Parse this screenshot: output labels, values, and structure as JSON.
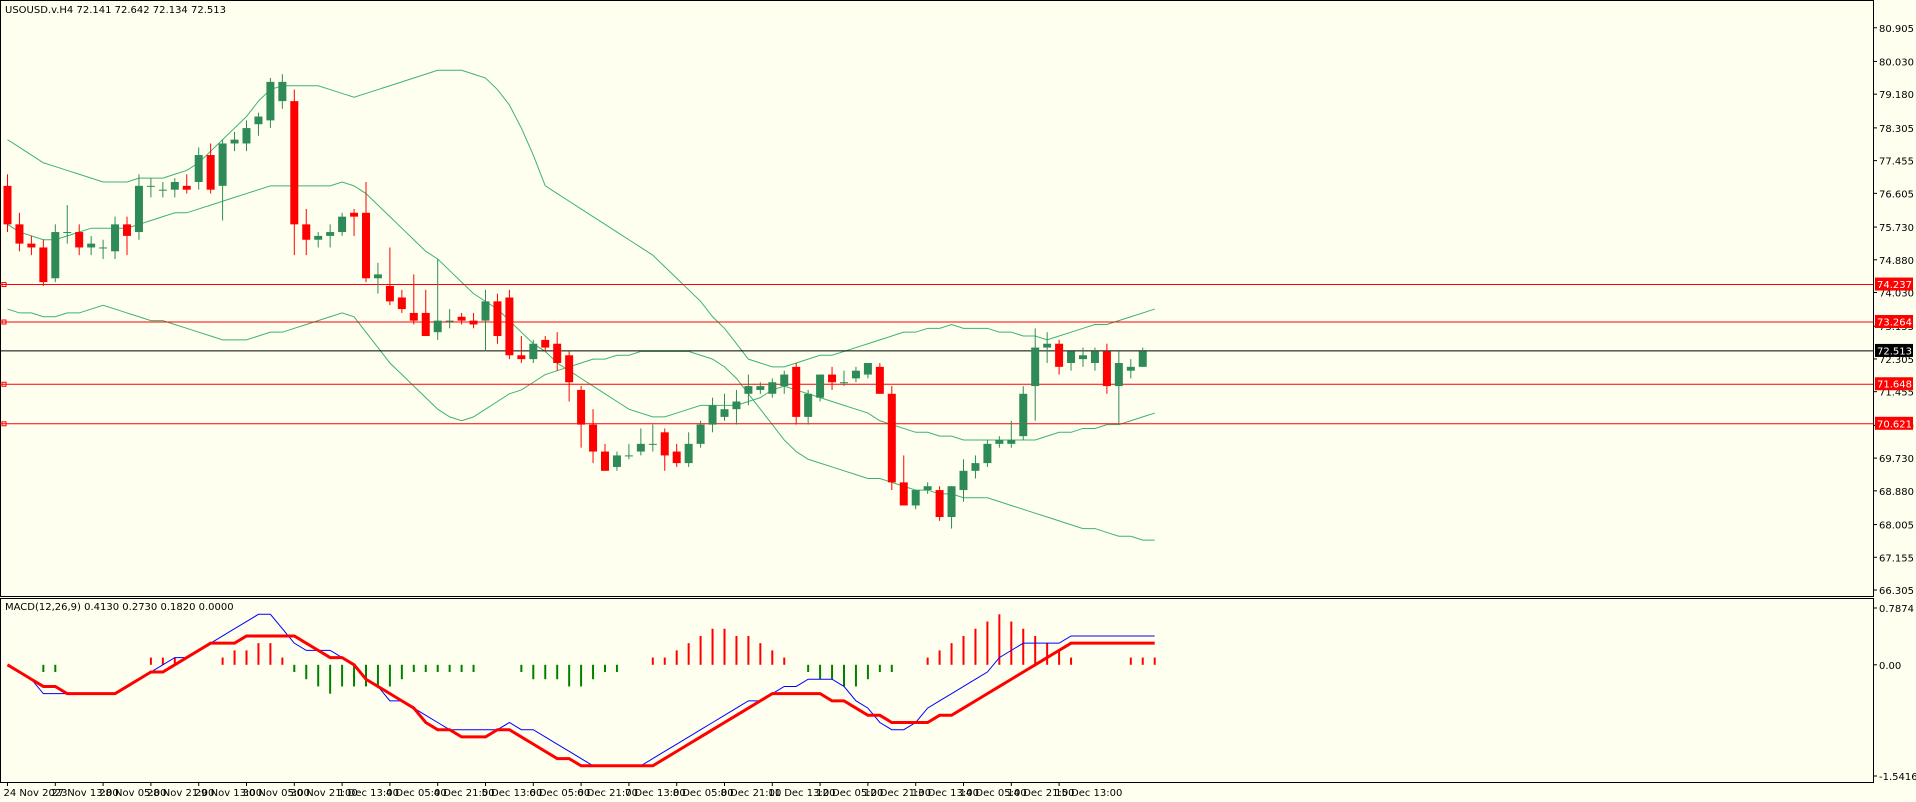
{
  "colors": {
    "background": "#fffff0",
    "bull": "#2e8b57",
    "bear": "#ff0000",
    "band": "#3cb371",
    "macd_line": "#0000ff",
    "signal_line": "#ff0000",
    "hist_up": "#ff0000",
    "hist_down": "#008000",
    "level_line": "#ff0000",
    "price_line": "#000000",
    "frame": "#000000"
  },
  "chart_data": [
    {
      "type": "candlestick",
      "title": "USOUSD.v.H4  72.141 72.642 72.134 72.513",
      "ylim": [
        66.305,
        81.47
      ],
      "y_ticks": [
        80.905,
        80.03,
        79.18,
        78.305,
        77.455,
        76.605,
        75.73,
        74.88,
        74.03,
        73.155,
        72.305,
        71.455,
        70.58,
        69.73,
        68.88,
        68.005,
        67.155,
        66.305
      ],
      "x_labels": [
        "24 Nov 2023",
        "27 Nov 13:00",
        "28 Nov 05:00",
        "28 Nov 21:00",
        "29 Nov 13:00",
        "30 Nov 05:00",
        "30 Nov 21:00",
        "1 Dec 13:00",
        "4 Dec 05:00",
        "4 Dec 21:00",
        "5 Dec 13:00",
        "6 Dec 05:00",
        "6 Dec 21:00",
        "7 Dec 13:00",
        "8 Dec 05:00",
        "8 Dec 21:00",
        "11 Dec 13:00",
        "12 Dec 05:00",
        "12 Dec 21:00",
        "13 Dec 13:00",
        "14 Dec 05:00",
        "14 Dec 21:00",
        "15 Dec 13:00"
      ],
      "x_label_index": [
        0,
        4,
        8,
        12,
        16,
        20,
        24,
        28,
        32,
        36,
        40,
        44,
        48,
        52,
        56,
        60,
        64,
        68,
        72,
        76,
        80,
        84,
        88
      ],
      "candles": [
        [
          76.8,
          77.1,
          75.6,
          75.8
        ],
        [
          75.8,
          76.1,
          75.1,
          75.3
        ],
        [
          75.3,
          75.5,
          75.0,
          75.2
        ],
        [
          75.2,
          75.4,
          74.2,
          74.3
        ],
        [
          74.4,
          75.8,
          74.3,
          75.6
        ],
        [
          75.6,
          76.3,
          75.3,
          75.6
        ],
        [
          75.6,
          75.8,
          75.0,
          75.2
        ],
        [
          75.2,
          75.5,
          75.0,
          75.3
        ],
        [
          75.2,
          75.4,
          74.9,
          75.2
        ],
        [
          75.1,
          76.0,
          74.9,
          75.8
        ],
        [
          75.8,
          76.0,
          75.0,
          75.5
        ],
        [
          75.6,
          77.1,
          75.4,
          76.8
        ],
        [
          76.8,
          77.0,
          76.5,
          76.8
        ],
        [
          76.7,
          76.9,
          76.5,
          76.7
        ],
        [
          76.7,
          77.0,
          76.5,
          76.9
        ],
        [
          76.8,
          77.1,
          76.6,
          76.7
        ],
        [
          76.9,
          77.8,
          76.7,
          77.6
        ],
        [
          77.6,
          77.9,
          76.6,
          76.7
        ],
        [
          76.8,
          78.0,
          75.9,
          77.9
        ],
        [
          77.9,
          78.2,
          77.7,
          78.0
        ],
        [
          77.9,
          78.5,
          77.7,
          78.3
        ],
        [
          78.4,
          78.7,
          78.1,
          78.6
        ],
        [
          78.5,
          79.6,
          78.3,
          79.5
        ],
        [
          79.0,
          79.7,
          78.8,
          79.5
        ],
        [
          79.0,
          79.3,
          75.0,
          75.8
        ],
        [
          75.8,
          76.2,
          75.0,
          75.4
        ],
        [
          75.4,
          75.6,
          75.2,
          75.5
        ],
        [
          75.5,
          75.8,
          75.2,
          75.6
        ],
        [
          75.6,
          76.1,
          75.5,
          76.0
        ],
        [
          76.1,
          76.2,
          75.5,
          76.0
        ],
        [
          76.1,
          76.9,
          74.3,
          74.4
        ],
        [
          74.4,
          74.8,
          74.0,
          74.5
        ],
        [
          74.2,
          75.2,
          73.7,
          73.8
        ],
        [
          73.9,
          74.1,
          73.5,
          73.6
        ],
        [
          73.5,
          74.5,
          73.2,
          73.3
        ],
        [
          73.5,
          74.1,
          72.9,
          72.9
        ],
        [
          73.0,
          74.9,
          72.8,
          73.3
        ],
        [
          73.3,
          73.6,
          73.1,
          73.3
        ],
        [
          73.4,
          73.5,
          73.2,
          73.3
        ],
        [
          73.3,
          73.5,
          73.1,
          73.2
        ],
        [
          73.3,
          74.1,
          72.5,
          73.8
        ],
        [
          73.8,
          74.0,
          72.7,
          72.9
        ],
        [
          73.9,
          74.1,
          72.3,
          72.4
        ],
        [
          72.4,
          72.9,
          72.2,
          72.3
        ],
        [
          72.3,
          72.8,
          72.2,
          72.7
        ],
        [
          72.8,
          72.9,
          72.5,
          72.6
        ],
        [
          72.7,
          73.0,
          72.0,
          72.2
        ],
        [
          72.4,
          72.5,
          71.2,
          71.7
        ],
        [
          71.5,
          71.6,
          70.0,
          70.6
        ],
        [
          70.6,
          71.0,
          69.6,
          69.9
        ],
        [
          69.9,
          70.1,
          69.4,
          69.4
        ],
        [
          69.5,
          69.9,
          69.4,
          69.8
        ],
        [
          69.8,
          70.1,
          69.7,
          69.8
        ],
        [
          69.9,
          70.5,
          69.8,
          70.1
        ],
        [
          70.1,
          70.6,
          69.9,
          70.1
        ],
        [
          70.4,
          70.5,
          69.4,
          69.8
        ],
        [
          69.9,
          70.1,
          69.5,
          69.6
        ],
        [
          69.6,
          70.4,
          69.5,
          70.1
        ],
        [
          70.1,
          70.7,
          70.0,
          70.6
        ],
        [
          70.6,
          71.3,
          70.4,
          71.1
        ],
        [
          70.8,
          71.4,
          70.7,
          71.0
        ],
        [
          71.0,
          71.5,
          70.6,
          71.2
        ],
        [
          71.4,
          71.9,
          71.1,
          71.6
        ],
        [
          71.5,
          71.7,
          71.4,
          71.6
        ],
        [
          71.4,
          71.8,
          71.3,
          71.7
        ],
        [
          71.6,
          72.0,
          71.4,
          71.9
        ],
        [
          72.1,
          72.2,
          70.6,
          70.8
        ],
        [
          70.8,
          71.5,
          70.6,
          71.4
        ],
        [
          71.3,
          71.9,
          71.2,
          71.9
        ],
        [
          71.9,
          72.1,
          71.5,
          71.7
        ],
        [
          71.7,
          72.0,
          71.6,
          71.7
        ],
        [
          71.8,
          72.1,
          71.7,
          72.0
        ],
        [
          71.9,
          72.2,
          71.8,
          72.2
        ],
        [
          72.1,
          72.2,
          71.4,
          71.4
        ],
        [
          71.4,
          71.6,
          68.9,
          69.1
        ],
        [
          69.1,
          69.8,
          68.6,
          68.5
        ],
        [
          68.5,
          68.9,
          68.4,
          68.9
        ],
        [
          68.9,
          69.1,
          68.8,
          69.0
        ],
        [
          68.9,
          69.0,
          68.1,
          68.2
        ],
        [
          68.2,
          69.0,
          67.9,
          69.0
        ],
        [
          68.9,
          69.7,
          68.6,
          69.4
        ],
        [
          69.4,
          69.8,
          69.2,
          69.6
        ],
        [
          69.6,
          70.2,
          69.5,
          70.1
        ],
        [
          70.1,
          70.3,
          70.0,
          70.2
        ],
        [
          70.1,
          70.7,
          70.0,
          70.2
        ],
        [
          70.3,
          71.6,
          70.2,
          71.4
        ],
        [
          71.6,
          73.1,
          70.7,
          72.6
        ],
        [
          72.6,
          73.0,
          72.2,
          72.7
        ],
        [
          72.7,
          72.8,
          71.9,
          72.1
        ],
        [
          72.2,
          72.5,
          72.0,
          72.5
        ],
        [
          72.3,
          72.6,
          72.1,
          72.4
        ],
        [
          72.2,
          72.6,
          72.0,
          72.5
        ],
        [
          72.5,
          72.7,
          71.4,
          71.6
        ],
        [
          71.6,
          72.5,
          70.6,
          72.2
        ],
        [
          72.0,
          72.3,
          71.8,
          72.1
        ],
        [
          72.1,
          72.6,
          72.1,
          72.5
        ]
      ],
      "bands": {
        "upper": [
          78.0,
          77.8,
          77.6,
          77.4,
          77.3,
          77.2,
          77.1,
          77.0,
          76.9,
          76.9,
          76.9,
          77.0,
          77.0,
          77.0,
          77.1,
          77.2,
          77.4,
          77.7,
          78.0,
          78.3,
          78.6,
          79.0,
          79.3,
          79.4,
          79.4,
          79.4,
          79.4,
          79.3,
          79.2,
          79.1,
          79.2,
          79.3,
          79.4,
          79.5,
          79.6,
          79.7,
          79.8,
          79.8,
          79.8,
          79.7,
          79.6,
          79.3,
          78.9,
          78.3,
          77.6,
          76.8,
          76.6,
          76.4,
          76.2,
          76.0,
          75.8,
          75.6,
          75.4,
          75.2,
          75.0,
          74.7,
          74.4,
          74.1,
          73.8,
          73.4,
          73.1,
          72.7,
          72.3,
          72.2,
          72.1,
          72.1,
          72.2,
          72.3,
          72.4,
          72.4,
          72.5,
          72.6,
          72.7,
          72.8,
          72.9,
          73.0,
          73.0,
          73.1,
          73.1,
          73.2,
          73.1,
          73.1,
          73.1,
          73.0,
          73.0,
          72.9,
          72.9,
          72.8,
          72.9,
          73.0,
          73.1,
          73.2,
          73.2,
          73.3,
          73.4,
          73.5,
          73.6
        ],
        "middle": [
          75.8,
          75.6,
          75.5,
          75.4,
          75.4,
          75.5,
          75.6,
          75.7,
          75.7,
          75.7,
          75.7,
          75.8,
          75.9,
          76.0,
          76.1,
          76.1,
          76.2,
          76.3,
          76.4,
          76.5,
          76.6,
          76.7,
          76.8,
          76.8,
          76.8,
          76.8,
          76.8,
          76.8,
          76.9,
          76.8,
          76.6,
          76.3,
          76.0,
          75.7,
          75.4,
          75.1,
          74.9,
          74.6,
          74.3,
          74.0,
          73.8,
          73.6,
          73.3,
          73.0,
          72.7,
          72.5,
          72.2,
          72.0,
          71.8,
          71.6,
          71.4,
          71.2,
          71.0,
          70.9,
          70.8,
          70.8,
          70.9,
          71.0,
          71.1,
          71.1,
          71.1,
          71.1,
          71.2,
          71.3,
          71.5,
          71.6,
          71.5,
          71.4,
          71.3,
          71.2,
          71.1,
          71.0,
          70.9,
          70.7,
          70.6,
          70.5,
          70.4,
          70.4,
          70.3,
          70.3,
          70.2,
          70.2,
          70.2,
          70.2,
          70.2,
          70.2,
          70.2,
          70.3,
          70.4,
          70.4,
          70.5,
          70.5,
          70.6,
          70.6,
          70.7,
          70.8,
          70.9
        ],
        "lower": [
          73.6,
          73.5,
          73.5,
          73.4,
          73.4,
          73.5,
          73.5,
          73.6,
          73.7,
          73.6,
          73.5,
          73.4,
          73.3,
          73.3,
          73.2,
          73.1,
          73.0,
          72.9,
          72.8,
          72.8,
          72.8,
          72.9,
          73.0,
          73.0,
          73.1,
          73.2,
          73.3,
          73.4,
          73.5,
          73.4,
          73.0,
          72.6,
          72.2,
          71.9,
          71.6,
          71.3,
          71.0,
          70.8,
          70.7,
          70.8,
          71.0,
          71.2,
          71.4,
          71.5,
          71.7,
          71.9,
          72.0,
          72.1,
          72.2,
          72.3,
          72.3,
          72.4,
          72.4,
          72.5,
          72.5,
          72.5,
          72.5,
          72.5,
          72.4,
          72.3,
          72.1,
          71.8,
          71.4,
          71.0,
          70.6,
          70.2,
          69.9,
          69.7,
          69.6,
          69.5,
          69.4,
          69.3,
          69.2,
          69.2,
          69.1,
          69.0,
          68.9,
          68.9,
          68.8,
          68.8,
          68.7,
          68.7,
          68.7,
          68.6,
          68.5,
          68.4,
          68.3,
          68.2,
          68.1,
          68.0,
          67.9,
          67.9,
          67.8,
          67.7,
          67.7,
          67.6,
          67.6
        ]
      },
      "levels": [
        74.237,
        73.264,
        71.648,
        70.621
      ],
      "level_labels": [
        "74.237",
        "73.264",
        "71.648",
        "70.621"
      ],
      "current_price": 72.513,
      "current_price_label": "72.513",
      "grid": false
    },
    {
      "type": "macd",
      "title": "MACD(12,26,9) 0.4130 0.2730 0.1820 0.0000",
      "ylim": [
        -1.5416,
        0.7874
      ],
      "y_ticks": [
        0.7874,
        0.0,
        -1.5416
      ],
      "y_tick_labels": [
        "0.7874",
        "0.00",
        "-1.5416"
      ],
      "macd": [
        0.0,
        -0.1,
        -0.2,
        -0.4,
        -0.4,
        -0.4,
        -0.4,
        -0.4,
        -0.4,
        -0.4,
        -0.3,
        -0.2,
        -0.1,
        0.0,
        0.1,
        0.1,
        0.2,
        0.3,
        0.4,
        0.5,
        0.6,
        0.7,
        0.7,
        0.5,
        0.3,
        0.2,
        0.2,
        0.2,
        0.1,
        0.0,
        -0.2,
        -0.3,
        -0.5,
        -0.5,
        -0.6,
        -0.7,
        -0.8,
        -0.9,
        -0.9,
        -0.9,
        -0.9,
        -0.9,
        -0.8,
        -0.9,
        -0.9,
        -1.0,
        -1.1,
        -1.2,
        -1.3,
        -1.4,
        -1.4,
        -1.4,
        -1.4,
        -1.4,
        -1.3,
        -1.2,
        -1.1,
        -1.0,
        -0.9,
        -0.8,
        -0.7,
        -0.6,
        -0.5,
        -0.5,
        -0.4,
        -0.3,
        -0.3,
        -0.2,
        -0.2,
        -0.2,
        -0.3,
        -0.5,
        -0.6,
        -0.8,
        -0.9,
        -0.9,
        -0.8,
        -0.6,
        -0.5,
        -0.4,
        -0.3,
        -0.2,
        -0.1,
        0.1,
        0.2,
        0.3,
        0.3,
        0.3,
        0.3,
        0.4,
        0.4,
        0.4,
        0.4,
        0.4,
        0.4,
        0.4,
        0.4
      ],
      "signal": [
        0.0,
        -0.1,
        -0.2,
        -0.3,
        -0.3,
        -0.4,
        -0.4,
        -0.4,
        -0.4,
        -0.4,
        -0.3,
        -0.2,
        -0.1,
        -0.1,
        0.0,
        0.1,
        0.2,
        0.3,
        0.3,
        0.3,
        0.4,
        0.4,
        0.4,
        0.4,
        0.4,
        0.3,
        0.2,
        0.1,
        0.1,
        0.0,
        -0.2,
        -0.3,
        -0.4,
        -0.5,
        -0.6,
        -0.8,
        -0.9,
        -0.9,
        -1.0,
        -1.0,
        -1.0,
        -0.9,
        -0.9,
        -1.0,
        -1.1,
        -1.2,
        -1.3,
        -1.3,
        -1.4,
        -1.4,
        -1.4,
        -1.4,
        -1.4,
        -1.4,
        -1.4,
        -1.3,
        -1.2,
        -1.1,
        -1.0,
        -0.9,
        -0.8,
        -0.7,
        -0.6,
        -0.5,
        -0.4,
        -0.4,
        -0.4,
        -0.4,
        -0.4,
        -0.5,
        -0.5,
        -0.6,
        -0.7,
        -0.7,
        -0.8,
        -0.8,
        -0.8,
        -0.8,
        -0.7,
        -0.7,
        -0.6,
        -0.5,
        -0.4,
        -0.3,
        -0.2,
        -0.1,
        0.0,
        0.1,
        0.2,
        0.3,
        0.3,
        0.3,
        0.3,
        0.3,
        0.3,
        0.3,
        0.3
      ],
      "histogram": [
        0.0,
        0.0,
        0.0,
        -0.1,
        -0.1,
        0.0,
        0.0,
        0.0,
        0.0,
        0.0,
        0.0,
        0.0,
        0.1,
        0.1,
        0.1,
        0.0,
        0.0,
        0.0,
        0.1,
        0.2,
        0.2,
        0.3,
        0.3,
        0.1,
        -0.1,
        -0.2,
        -0.3,
        -0.4,
        -0.3,
        -0.3,
        -0.3,
        -0.3,
        -0.3,
        -0.2,
        -0.1,
        -0.1,
        -0.1,
        -0.1,
        -0.1,
        -0.1,
        0.0,
        0.0,
        0.0,
        -0.1,
        -0.2,
        -0.2,
        -0.2,
        -0.3,
        -0.3,
        -0.2,
        -0.1,
        -0.1,
        0.0,
        0.0,
        0.1,
        0.1,
        0.2,
        0.3,
        0.4,
        0.5,
        0.5,
        0.4,
        0.4,
        0.3,
        0.2,
        0.1,
        0.0,
        -0.1,
        -0.2,
        -0.2,
        -0.3,
        -0.3,
        -0.2,
        -0.1,
        -0.1,
        0.0,
        0.0,
        0.1,
        0.2,
        0.3,
        0.4,
        0.5,
        0.6,
        0.7,
        0.6,
        0.5,
        0.4,
        0.3,
        0.2,
        0.1,
        0.0,
        0.0,
        0.0,
        0.0,
        0.1,
        0.1,
        0.1
      ]
    }
  ]
}
